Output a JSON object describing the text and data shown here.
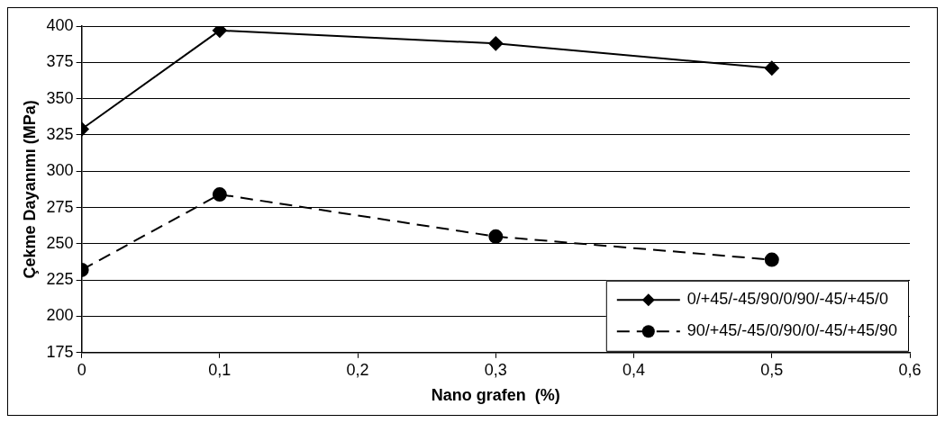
{
  "chart_data": {
    "type": "line",
    "xlabel": "Nano grafen  (%)",
    "ylabel": "Çekme Dayanımı (MPa)",
    "x": [
      0,
      0.1,
      0.3,
      0.5
    ],
    "series": [
      {
        "name": "0/+45/-45/90/0/90/-45/+45/0",
        "color": "#000000",
        "marker": "diamond",
        "line_style": "solid",
        "values": [
          329,
          397,
          388,
          371
        ]
      },
      {
        "name": "90/+45/-45/0/90/0/-45/+45/90",
        "color": "#000000",
        "marker": "circle",
        "line_style": "dashed",
        "values": [
          232,
          284,
          255,
          239
        ]
      }
    ],
    "xlim": [
      0,
      0.6
    ],
    "xticks": [
      0,
      {
        "value": 0.1,
        "label": "0,1"
      },
      {
        "value": 0.2,
        "label": "0,2"
      },
      {
        "value": 0.3,
        "label": "0,3"
      },
      {
        "value": 0.4,
        "label": "0,4"
      },
      {
        "value": 0.5,
        "label": "0,5"
      },
      {
        "value": 0.6,
        "label": "0,6"
      }
    ],
    "ylim": [
      175,
      400
    ],
    "yticks": [
      175,
      200,
      225,
      250,
      275,
      300,
      325,
      350,
      375,
      400
    ],
    "grid": "y",
    "legend": "bottom right"
  }
}
